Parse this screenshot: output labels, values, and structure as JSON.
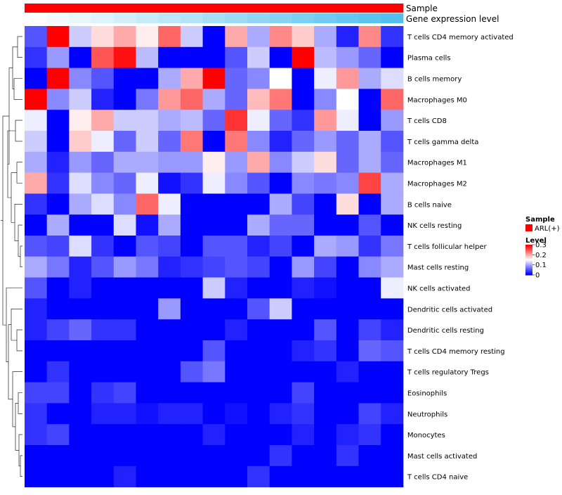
{
  "chart_data": {
    "type": "heatmap",
    "title": "",
    "annotation_tracks": [
      "Sample",
      "Gene expression level"
    ],
    "rows": [
      "T cells CD4 memory activated",
      "Plasma cells",
      "B cells memory",
      "Macrophages M0",
      "T cells CD8",
      "T cells gamma delta",
      "Macrophages M1",
      "Macrophages M2",
      "B cells naive",
      "NK cells resting",
      "T cells follicular helper",
      "Mast cells resting",
      "NK cells activated",
      "Dendritic cells activated",
      "Dendritic cells resting",
      "T cells CD4 memory resting",
      "T cells regulatory  Tregs",
      "Eosinophils",
      "Neutrophils",
      "Monocytes",
      "Mast cells activated",
      "T cells CD4 naive"
    ],
    "values": [
      [
        0.05,
        0.3,
        0.12,
        0.17,
        0.2,
        0.16,
        0.24,
        0.12,
        0.0,
        0.2,
        0.1,
        0.22,
        0.18,
        0.1,
        0.02,
        0.22,
        0.03
      ],
      [
        0.03,
        0.09,
        0.0,
        0.25,
        0.29,
        0.11,
        0.0,
        0.0,
        0.0,
        0.05,
        0.12,
        0.0,
        0.3,
        0.11,
        0.09,
        0.06,
        0.0
      ],
      [
        0.0,
        0.3,
        0.08,
        0.05,
        0.0,
        0.0,
        0.1,
        0.2,
        0.3,
        0.06,
        0.08,
        0.15,
        0.0,
        0.14,
        0.21,
        0.1,
        0.13
      ],
      [
        0.3,
        0.08,
        0.12,
        0.02,
        0.0,
        0.07,
        0.21,
        0.24,
        0.1,
        0.06,
        0.19,
        0.23,
        0.0,
        0.08,
        0.15,
        0.0,
        0.24
      ],
      [
        0.14,
        0.0,
        0.16,
        0.2,
        0.12,
        0.12,
        0.1,
        0.11,
        0.06,
        0.27,
        0.14,
        0.06,
        0.03,
        0.21,
        0.14,
        0.0,
        0.09
      ],
      [
        0.12,
        0.0,
        0.18,
        0.14,
        0.06,
        0.12,
        0.06,
        0.23,
        0.0,
        0.23,
        0.08,
        0.02,
        0.06,
        0.09,
        0.06,
        0.1,
        0.05
      ],
      [
        0.1,
        0.02,
        0.09,
        0.06,
        0.1,
        0.1,
        0.09,
        0.09,
        0.16,
        0.09,
        0.2,
        0.08,
        0.12,
        0.17,
        0.06,
        0.1,
        0.06
      ],
      [
        0.2,
        0.03,
        0.13,
        0.08,
        0.06,
        0.14,
        0.01,
        0.03,
        0.14,
        0.08,
        0.05,
        0.0,
        0.08,
        0.07,
        0.08,
        0.26,
        0.1
      ],
      [
        0.03,
        0.0,
        0.1,
        0.13,
        0.08,
        0.24,
        0.14,
        0.0,
        0.0,
        0.0,
        0.0,
        0.1,
        0.04,
        0.0,
        0.17,
        0.0,
        0.1
      ],
      [
        0.0,
        0.1,
        0.0,
        0.0,
        0.13,
        0.01,
        0.1,
        0.0,
        0.0,
        0.0,
        0.1,
        0.06,
        0.06,
        0.0,
        0.0,
        0.05,
        0.0
      ],
      [
        0.05,
        0.04,
        0.13,
        0.03,
        0.0,
        0.05,
        0.04,
        0.0,
        0.05,
        0.05,
        0.02,
        0.04,
        0.0,
        0.1,
        0.09,
        0.03,
        0.07
      ],
      [
        0.1,
        0.07,
        0.02,
        0.05,
        0.09,
        0.07,
        0.02,
        0.03,
        0.04,
        0.05,
        0.04,
        0.0,
        0.09,
        0.04,
        0.0,
        0.08,
        0.1
      ],
      [
        0.05,
        0.0,
        0.02,
        0.0,
        0.0,
        0.0,
        0.0,
        0.0,
        0.12,
        0.02,
        0.0,
        0.0,
        0.02,
        0.01,
        0.0,
        0.0,
        0.14
      ],
      [
        0.02,
        0.0,
        0.0,
        0.0,
        0.0,
        0.0,
        0.09,
        0.0,
        0.0,
        0.0,
        0.05,
        0.12,
        0.0,
        0.0,
        0.0,
        0.0,
        0.0
      ],
      [
        0.02,
        0.04,
        0.06,
        0.03,
        0.03,
        0.0,
        0.0,
        0.0,
        0.0,
        0.02,
        0.0,
        0.0,
        0.0,
        0.05,
        0.0,
        0.04,
        0.02
      ],
      [
        0.0,
        0.0,
        0.0,
        0.0,
        0.0,
        0.0,
        0.0,
        0.0,
        0.05,
        0.0,
        0.0,
        0.0,
        0.02,
        0.03,
        0.0,
        0.06,
        0.05
      ],
      [
        0.0,
        0.03,
        0.0,
        0.0,
        0.0,
        0.0,
        0.0,
        0.05,
        0.07,
        0.0,
        0.0,
        0.0,
        0.0,
        0.0,
        0.02,
        0.0,
        0.0
      ],
      [
        0.04,
        0.04,
        0.0,
        0.03,
        0.04,
        0.0,
        0.0,
        0.0,
        0.0,
        0.0,
        0.0,
        0.0,
        0.04,
        0.0,
        0.0,
        0.0,
        0.0
      ],
      [
        0.03,
        0.0,
        0.0,
        0.02,
        0.02,
        0.01,
        0.02,
        0.02,
        0.0,
        0.01,
        0.0,
        0.02,
        0.03,
        0.0,
        0.0,
        0.04,
        0.02
      ],
      [
        0.03,
        0.04,
        0.0,
        0.0,
        0.0,
        0.0,
        0.0,
        0.0,
        0.02,
        0.0,
        0.0,
        0.0,
        0.02,
        0.0,
        0.02,
        0.03,
        0.0
      ],
      [
        0.0,
        0.0,
        0.0,
        0.0,
        0.0,
        0.0,
        0.0,
        0.0,
        0.0,
        0.0,
        0.0,
        0.03,
        0.0,
        0.0,
        0.03,
        0.0,
        0.0
      ],
      [
        0.0,
        0.0,
        0.0,
        0.0,
        0.02,
        0.0,
        0.0,
        0.0,
        0.0,
        0.0,
        0.03,
        0.0,
        0.0,
        0.0,
        0.0,
        0.0,
        0.0
      ]
    ],
    "sample_colors": [
      "#ff0000",
      "#ff0000",
      "#ff0000",
      "#ff0000",
      "#ff0000",
      "#ff0000",
      "#ff0000",
      "#ff0000",
      "#ff0000",
      "#ff0000",
      "#ff0000",
      "#ff0000",
      "#ff0000",
      "#ff0000",
      "#ff0000",
      "#ff0000",
      "#ff0000"
    ],
    "expression_colors": [
      "#ffffff",
      "#f4fbfe",
      "#e9f7fd",
      "#def3fc",
      "#d3effb",
      "#c8ebfa",
      "#bde7f9",
      "#b2e3f8",
      "#a7dff7",
      "#9cdbf6",
      "#91d7f5",
      "#86d3f4",
      "#7bcff3",
      "#70cbf2",
      "#65c7f1",
      "#5cc3f0",
      "#52bfef"
    ],
    "legend_sample": {
      "title": "Sample",
      "label": "ARL(+)",
      "color": "#ff0000"
    },
    "legend_level": {
      "title": "Level",
      "ticks": [
        "0.3",
        "0.2",
        "0.1",
        "0"
      ],
      "range": [
        0,
        0.3
      ]
    },
    "color_scale": {
      "low": "#0000ff",
      "mid": "#ffffff",
      "high": "#ff0000",
      "midpoint": 0.15
    }
  }
}
